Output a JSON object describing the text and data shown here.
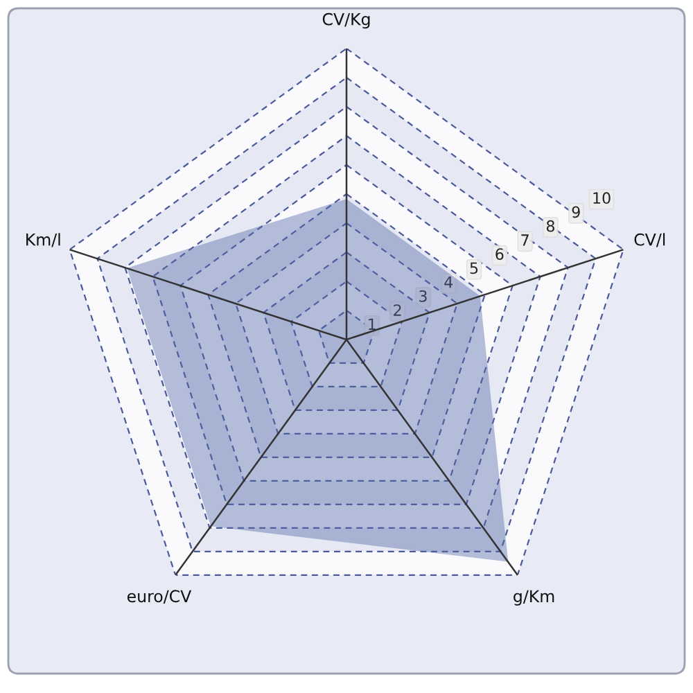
{
  "chart_data": {
    "type": "radar",
    "categories": [
      "CV/Kg",
      "CV/l",
      "g/Km",
      "euro/CV",
      "Km/l"
    ],
    "series": [
      {
        "color": "#5468a8",
        "values": [
          4.8,
          4.8,
          9.4,
          7.9,
          7.9
        ]
      }
    ],
    "ylim": [
      0,
      10
    ],
    "yticks": [
      1,
      2,
      3,
      4,
      5,
      6,
      7,
      8,
      9,
      10
    ],
    "grid": true
  }
}
